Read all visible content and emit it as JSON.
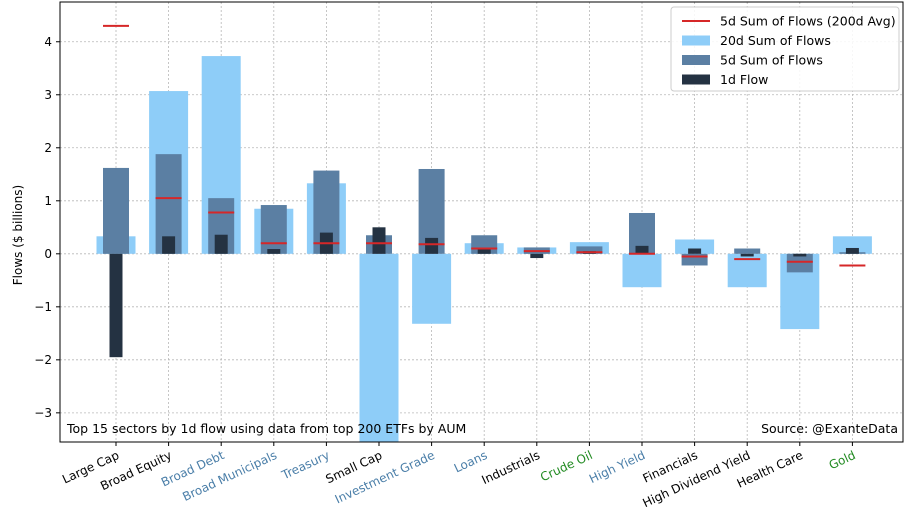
{
  "chart_data": {
    "type": "bar",
    "ylabel": "Flows ($ billions)",
    "ylim": [
      -3.55,
      4.75
    ],
    "yticks": [
      -3,
      -2,
      -1,
      0,
      1,
      2,
      3,
      4
    ],
    "ytick_labels": [
      "−3",
      "−2",
      "−1",
      "0",
      "1",
      "2",
      "3",
      "4"
    ],
    "grid": true,
    "legend_position": "top-right",
    "categories": [
      "Large Cap",
      "Broad Equity",
      "Broad Debt",
      "Broad Municipals",
      "Treasury",
      "Small Cap",
      "Investment Grade",
      "Loans",
      "Industrials",
      "Crude Oil",
      "High Yield",
      "Financials",
      "High Dividend Yield",
      "Health Care",
      "Gold"
    ],
    "category_colors": [
      "#000000",
      "#000000",
      "#4a7ea8",
      "#4a7ea8",
      "#4a7ea8",
      "#000000",
      "#4a7ea8",
      "#4a7ea8",
      "#000000",
      "#228b22",
      "#4a7ea8",
      "#000000",
      "#000000",
      "#000000",
      "#228b22"
    ],
    "series": [
      {
        "name": "20d Sum of Flows",
        "color": "#8ecdf8",
        "values": [
          0.33,
          3.07,
          3.73,
          0.85,
          1.33,
          -3.55,
          -1.32,
          0.2,
          0.12,
          0.22,
          -0.63,
          0.27,
          -0.63,
          -1.42,
          0.33
        ]
      },
      {
        "name": "5d Sum of Flows",
        "color": "#5b7fa3",
        "values": [
          1.62,
          1.88,
          1.05,
          0.92,
          1.57,
          0.35,
          1.6,
          0.35,
          0.12,
          0.14,
          0.77,
          -0.22,
          0.1,
          -0.35,
          0.03
        ]
      },
      {
        "name": "1d Flow",
        "color": "#243242",
        "values": [
          -1.95,
          0.33,
          0.36,
          0.09,
          0.4,
          0.5,
          0.3,
          0.1,
          -0.08,
          0.05,
          0.15,
          0.1,
          -0.05,
          -0.05,
          0.11
        ]
      },
      {
        "name": "5d Sum of Flows (200d Avg)",
        "color": "#d62728",
        "values": [
          4.3,
          1.05,
          0.78,
          0.2,
          0.2,
          0.2,
          0.18,
          0.1,
          0.05,
          0.03,
          0.0,
          -0.05,
          -0.1,
          -0.15,
          -0.22
        ]
      }
    ],
    "annotations": {
      "note": "Top 15 sectors by 1d flow using data from top 200 ETFs by AUM",
      "source": "Source: @ExanteData"
    },
    "legend": [
      "5d Sum of Flows (200d Avg)",
      "20d Sum of Flows",
      "5d Sum of Flows",
      "1d Flow"
    ]
  }
}
